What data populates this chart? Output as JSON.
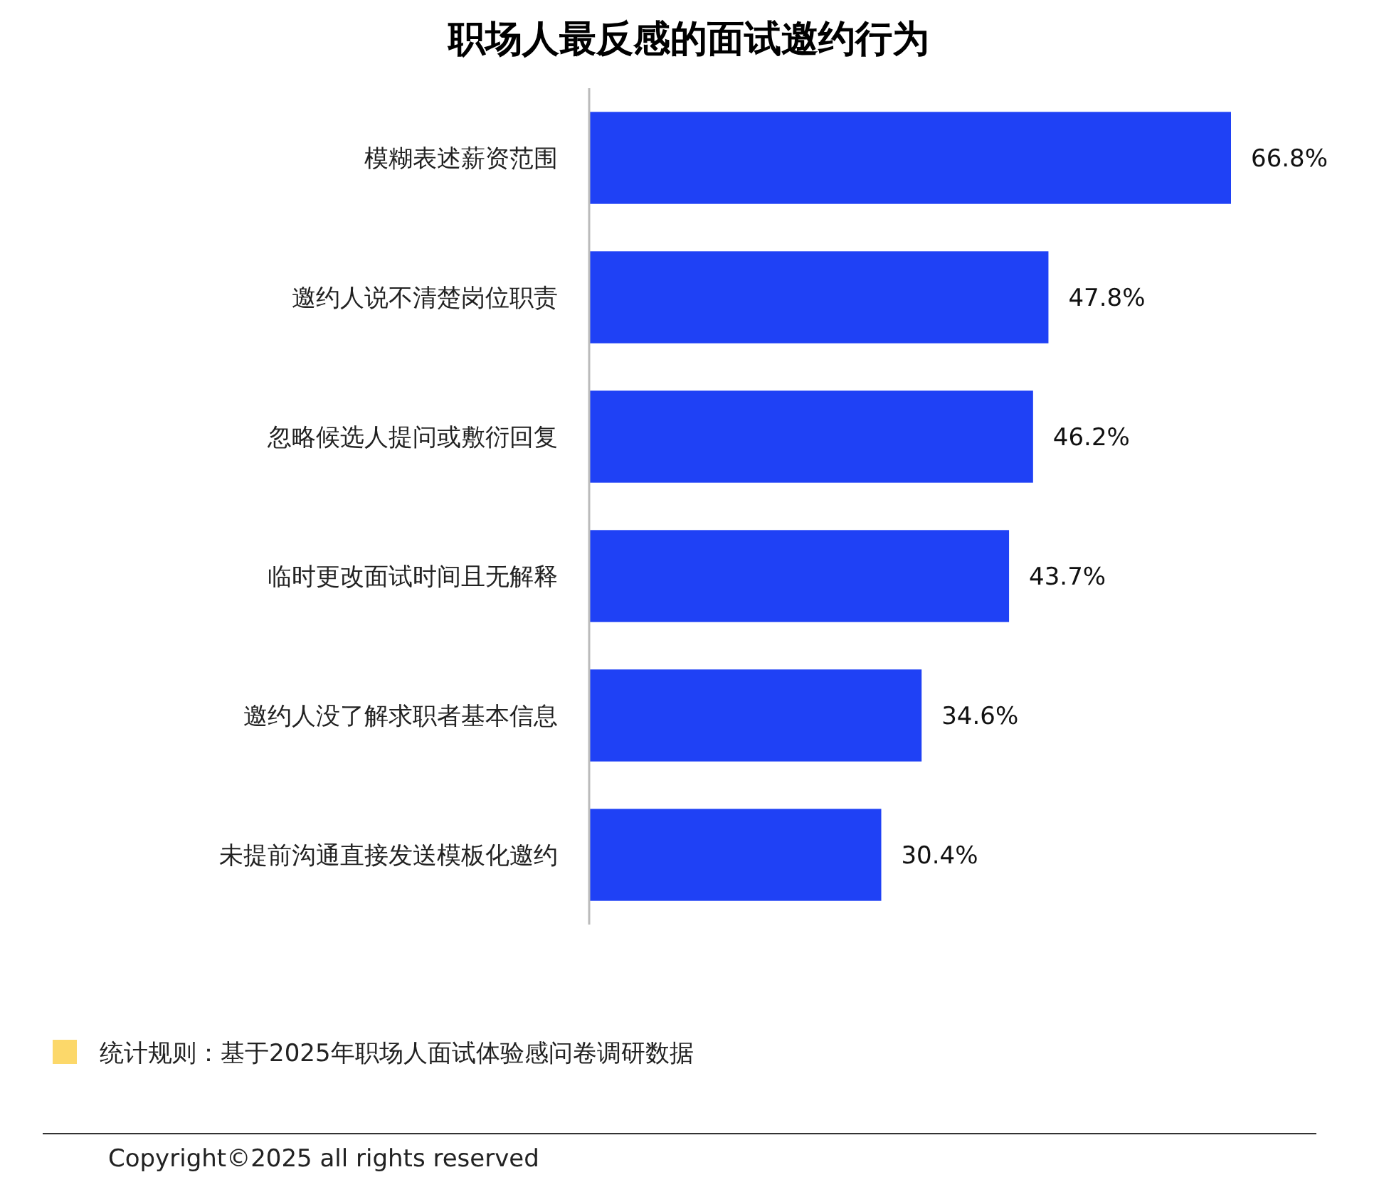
{
  "chart_data": {
    "type": "bar",
    "orientation": "horizontal",
    "title": "职场人最反感的面试邀约行为",
    "categories": [
      "模糊表述薪资范围",
      "邀约人说不清楚岗位职责",
      "忽略候选人提问或敷衍回复",
      "临时更改面试时间且无解释",
      "邀约人没了解求职者基本信息",
      "未提前沟通直接发送模板化邀约"
    ],
    "values": [
      66.8,
      47.8,
      46.2,
      43.7,
      34.6,
      30.4
    ],
    "value_labels": [
      "66.8%",
      "47.8%",
      "46.2%",
      "43.7%",
      "34.6%",
      "30.4%"
    ],
    "color": "#1f41f5",
    "tick_labels": "y",
    "annotations": [
      "统计规则：基于2025年职场人面试体验感问卷调研数据",
      "Copyright©2025 all rights reserved"
    ]
  }
}
